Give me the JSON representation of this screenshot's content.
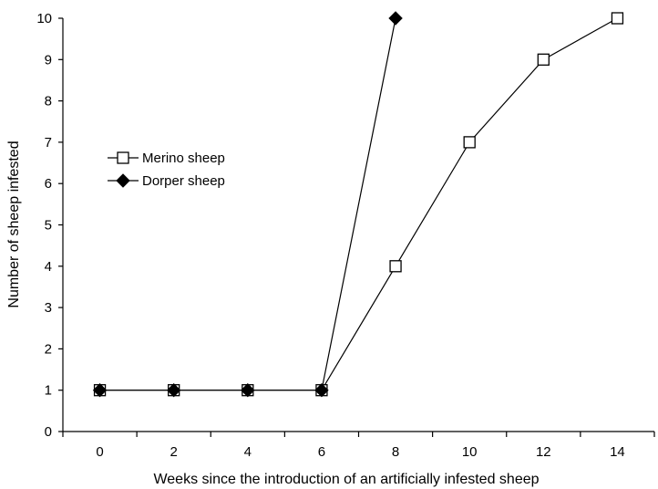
{
  "chart_data": {
    "type": "line",
    "xlabel": "Weeks since the introduction of an artificially infested sheep",
    "ylabel": "Number of sheep infested",
    "xlim": [
      -1,
      15
    ],
    "ylim": [
      0,
      10
    ],
    "x_ticks": [
      0,
      2,
      4,
      6,
      8,
      10,
      12,
      14
    ],
    "y_ticks": [
      0,
      1,
      2,
      3,
      4,
      5,
      6,
      7,
      8,
      9,
      10
    ],
    "grid": false,
    "legend_position": "left, upper-middle",
    "series": [
      {
        "name": "Merino sheep",
        "marker": "open-square",
        "color": "#000000",
        "x": [
          0,
          2,
          4,
          6,
          8,
          10,
          12,
          14
        ],
        "y": [
          1,
          1,
          1,
          1,
          4,
          7,
          9,
          10
        ]
      },
      {
        "name": "Dorper sheep",
        "marker": "filled-diamond",
        "color": "#000000",
        "x": [
          0,
          2,
          4,
          6,
          8
        ],
        "y": [
          1,
          1,
          1,
          1,
          10
        ]
      }
    ]
  }
}
